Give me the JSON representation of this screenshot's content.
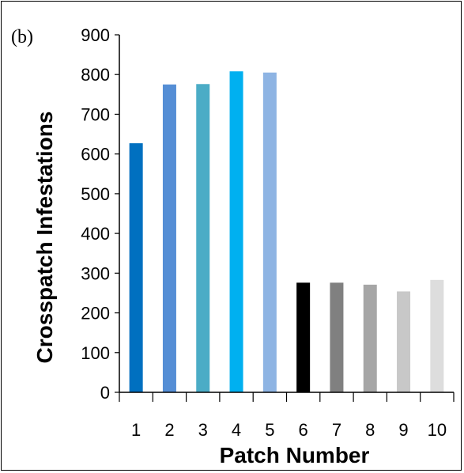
{
  "panel_label": "(b)",
  "chart_data": {
    "type": "bar",
    "xlabel": "Patch Number",
    "ylabel": "Crosspatch Infestations",
    "categories": [
      "1",
      "2",
      "3",
      "4",
      "5",
      "6",
      "7",
      "8",
      "9",
      "10"
    ],
    "values": [
      627,
      775,
      776,
      808,
      805,
      276,
      276,
      271,
      254,
      283
    ],
    "colors": [
      "#0070C0",
      "#558ED5",
      "#4BACC6",
      "#00B0F0",
      "#8EB4E3",
      "#000000",
      "#808080",
      "#A6A6A6",
      "#C8C8C8",
      "#DDDDDD"
    ],
    "ylim": [
      0,
      900
    ],
    "yticks": [
      0,
      100,
      200,
      300,
      400,
      500,
      600,
      700,
      800,
      900
    ],
    "grid": false,
    "legend": "none"
  }
}
